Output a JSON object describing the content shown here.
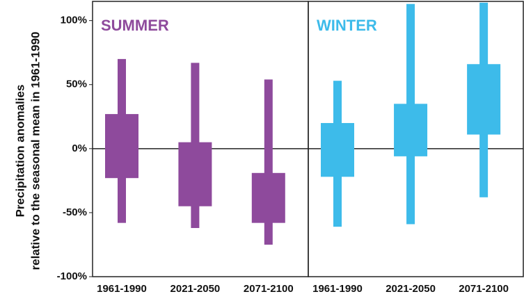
{
  "chart_data": [
    {
      "type": "range-bar",
      "ylabel": [
        "Precipitation anomalies",
        "relative to the seasonal mean in 1961-1990"
      ],
      "categories": [
        "1961-1990",
        "2021-2050",
        "2071-2100"
      ],
      "series": [
        {
          "name": "SUMMER",
          "color": "#8e4a9c",
          "whisker_low": [
            -58,
            -62,
            -75
          ],
          "box_low": [
            -23,
            -45,
            -58
          ],
          "box_high": [
            27,
            5,
            -19
          ],
          "whisker_high": [
            70,
            67,
            54
          ]
        }
      ],
      "ylim": [
        -100,
        115
      ],
      "yticks": [
        {
          "value": -100,
          "label": "-100%"
        },
        {
          "value": -50,
          "label": "-50%"
        },
        {
          "value": 0,
          "label": "0%"
        },
        {
          "value": 50,
          "label": "50%"
        },
        {
          "value": 100,
          "label": "100%"
        }
      ],
      "hline": 0
    },
    {
      "type": "range-bar",
      "categories": [
        "1961-1990",
        "2021-2050",
        "2071-2100"
      ],
      "series": [
        {
          "name": "WINTER",
          "color": "#3dbbea",
          "whisker_low": [
            -61,
            -59,
            -38
          ],
          "box_low": [
            -22,
            -6,
            11
          ],
          "box_high": [
            20,
            35,
            66
          ],
          "whisker_high": [
            53,
            113,
            114
          ]
        }
      ],
      "ylim": [
        -100,
        115
      ],
      "hline": 0
    }
  ]
}
